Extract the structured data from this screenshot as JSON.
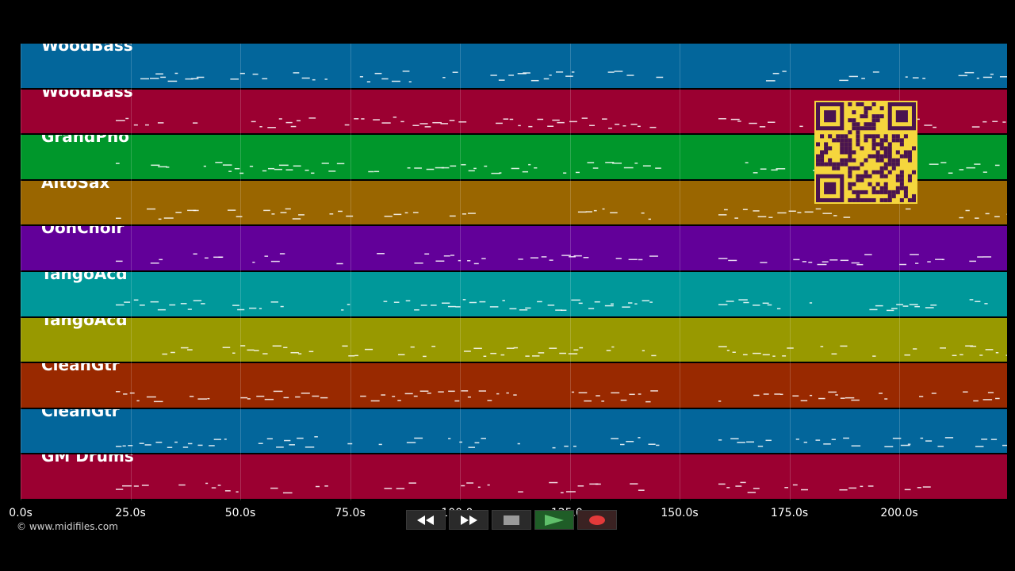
{
  "tracks": [
    {
      "name": "WoodBass",
      "color": "#03669b"
    },
    {
      "name": "WoodBass",
      "color": "#9b0031"
    },
    {
      "name": "GrandPno",
      "color": "#00972b"
    },
    {
      "name": "AltoSax",
      "color": "#9a6600"
    },
    {
      "name": "OohChoir",
      "color": "#620099"
    },
    {
      "name": "TangoAcd",
      "color": "#00989a"
    },
    {
      "name": "TangoAcd",
      "color": "#989900"
    },
    {
      "name": "CleanGtr",
      "color": "#992900"
    },
    {
      "name": "CleanGtr",
      "color": "#03669b"
    },
    {
      "name": "GM Drums",
      "color": "#9b0031"
    }
  ],
  "timeline": {
    "ticks": [
      "0.0s",
      "25.0s",
      "50.0s",
      "75.0s",
      "100.0s",
      "125.0s",
      "150.0s",
      "175.0s",
      "200.0s"
    ]
  },
  "copyright": "© www.midifiles.com",
  "transport": {
    "rewind_icon": "rewind-icon",
    "fast_forward_icon": "fast-forward-icon",
    "stop_icon": "stop-icon",
    "play_icon": "play-icon",
    "record_icon": "record-icon"
  },
  "qr_code": {
    "color": "#f5d63d",
    "dark_color": "#4a1450"
  }
}
